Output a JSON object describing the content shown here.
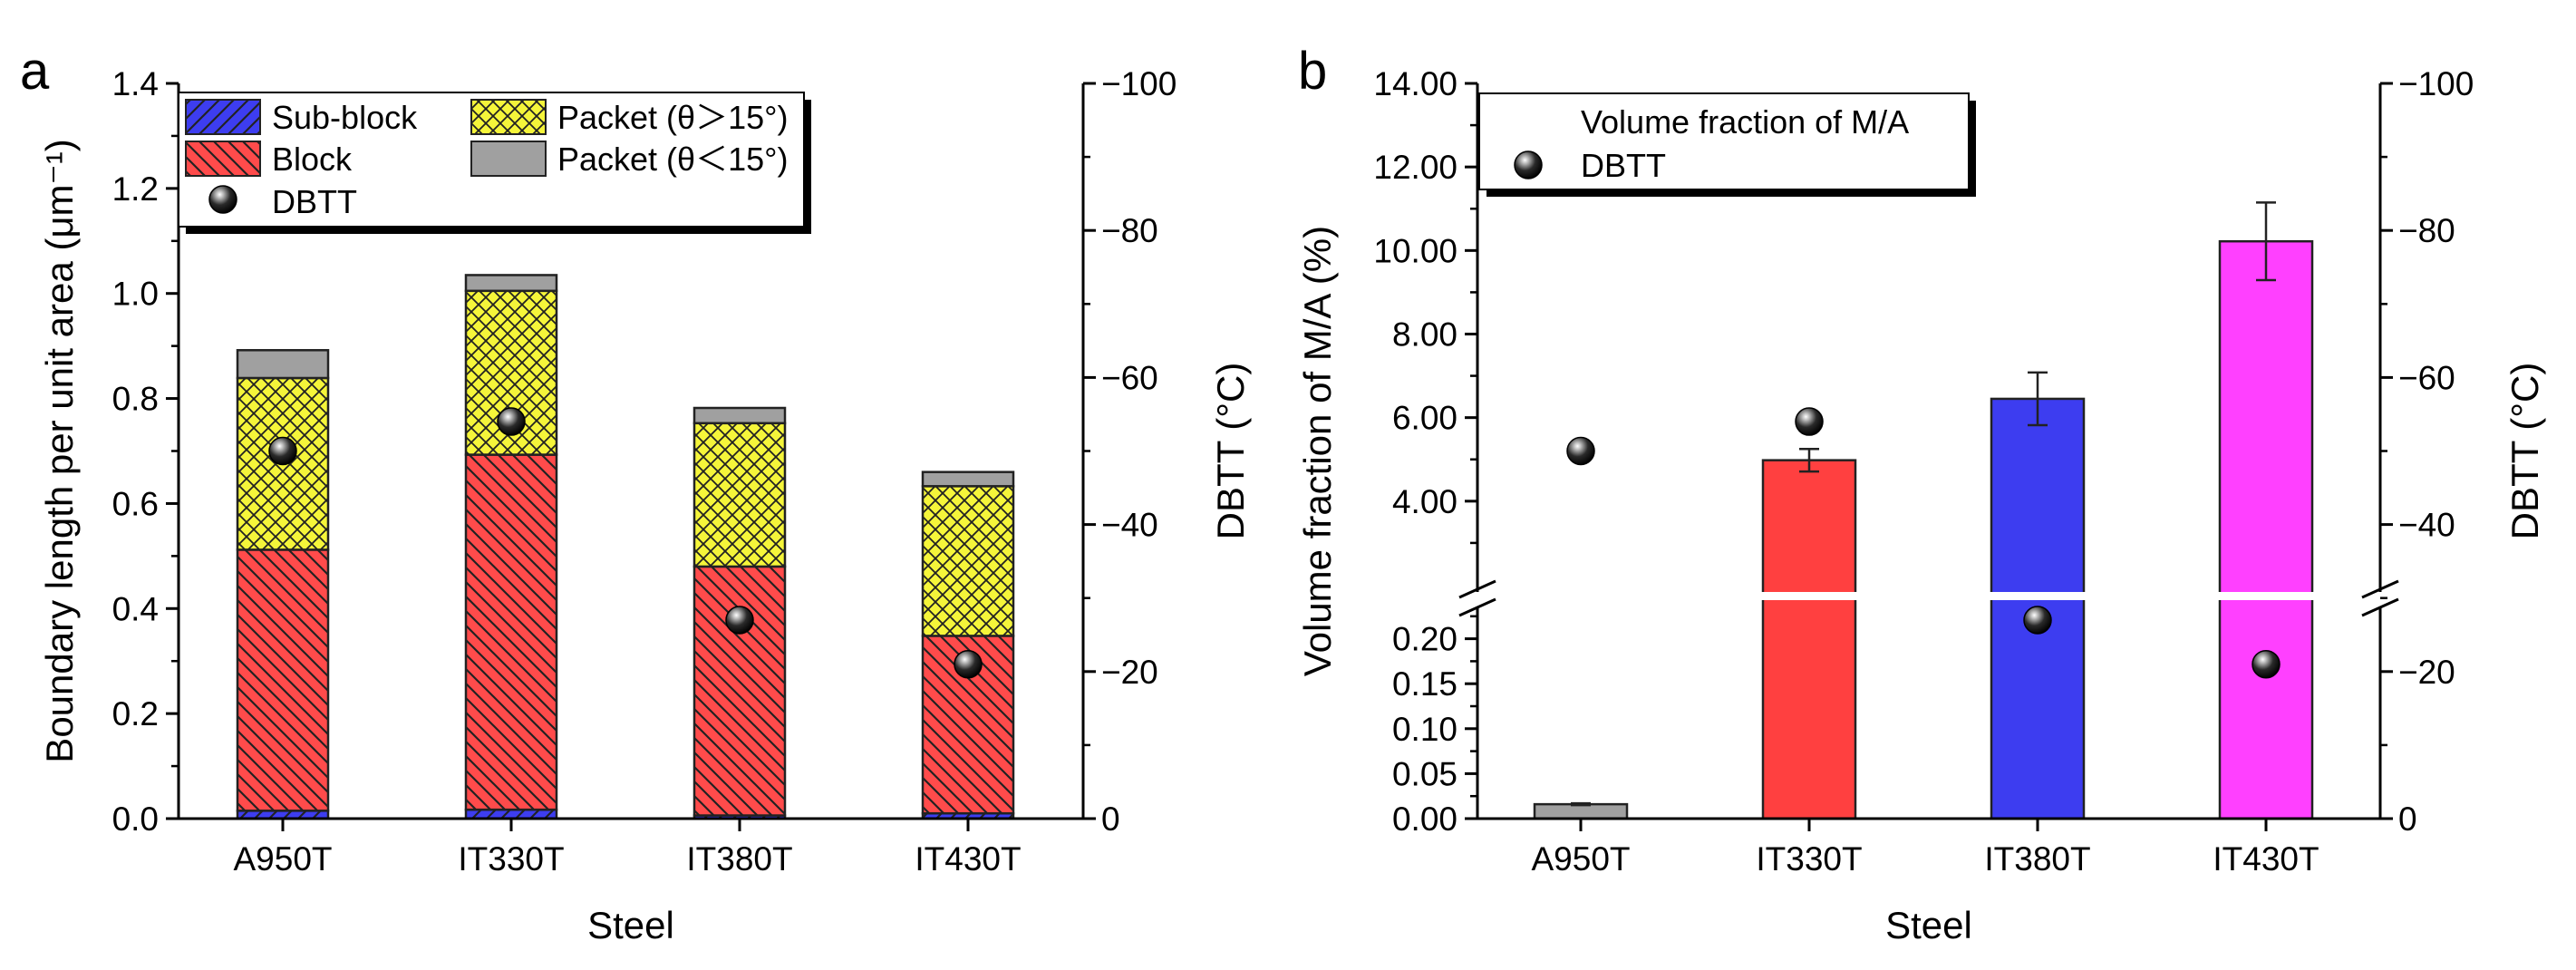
{
  "chart_data": [
    {
      "panel": "a",
      "type": "bar",
      "stacked": true,
      "xlabel": "Steel",
      "ylabel": "Boundary length per unit area (μm⁻¹)",
      "y2label": "DBTT (°C)",
      "categories": [
        "A950T",
        "IT330T",
        "IT380T",
        "IT430T"
      ],
      "ylim": [
        0,
        1.4
      ],
      "yticks": [
        "0.0",
        "0.2",
        "0.4",
        "0.6",
        "0.8",
        "1.0",
        "1.2",
        "1.4"
      ],
      "y2lim": [
        0,
        -100
      ],
      "y2ticks": [
        "0",
        "−20",
        "−40",
        "−60",
        "−80",
        "−100"
      ],
      "series": [
        {
          "name": "Sub-block",
          "color": "#3d3df0",
          "pattern": "diag-up",
          "values": [
            0.015,
            0.017,
            0.006,
            0.01
          ]
        },
        {
          "name": "Block",
          "color": "#ff4b4b",
          "pattern": "diag-down",
          "values": [
            0.497,
            0.676,
            0.474,
            0.338
          ]
        },
        {
          "name": "Packet (θ＞15°)",
          "color": "#f5f53a",
          "pattern": "cross",
          "values": [
            0.327,
            0.312,
            0.273,
            0.285
          ]
        },
        {
          "name": "Packet (θ＜15°)",
          "color": "#a0a0a0",
          "pattern": "solid",
          "values": [
            0.053,
            0.03,
            0.029,
            0.027
          ]
        }
      ],
      "dbtt": {
        "name": "DBTT",
        "values": [
          -50,
          -54,
          -27,
          -21
        ]
      },
      "legend_position": "top-left"
    },
    {
      "panel": "b",
      "type": "bar",
      "broken_axis": true,
      "xlabel": "Steel",
      "ylabel": "Volume fraction of M/A (%)",
      "y2label": "DBTT (°C)",
      "categories": [
        "A950T",
        "IT330T",
        "IT380T",
        "IT430T"
      ],
      "ylim_lower": [
        0,
        0.25
      ],
      "ylim_upper": [
        2,
        14
      ],
      "yticks_lower": [
        "0.00",
        "0.05",
        "0.10",
        "0.15",
        "0.20"
      ],
      "yticks_upper": [
        "4.00",
        "6.00",
        "8.00",
        "10.00",
        "12.00",
        "14.00"
      ],
      "y2lim": [
        0,
        -100
      ],
      "y2ticks": [
        "0",
        "−20",
        "−40",
        "−60",
        "−80",
        "−100"
      ],
      "series": [
        {
          "name": "Volume fraction of M/A",
          "colors": [
            "#a0a0a0",
            "#ff4040",
            "#3d3df0",
            "#ff40ff"
          ],
          "values": [
            0.016,
            4.98,
            6.45,
            10.22
          ],
          "errors": [
            0.001,
            0.27,
            0.63,
            0.93
          ]
        }
      ],
      "dbtt": {
        "name": "DBTT",
        "values": [
          -50,
          -54,
          -27,
          -21
        ]
      },
      "legend_position": "top-left"
    }
  ],
  "labels": {
    "panel_a": "a",
    "panel_b": "b"
  }
}
